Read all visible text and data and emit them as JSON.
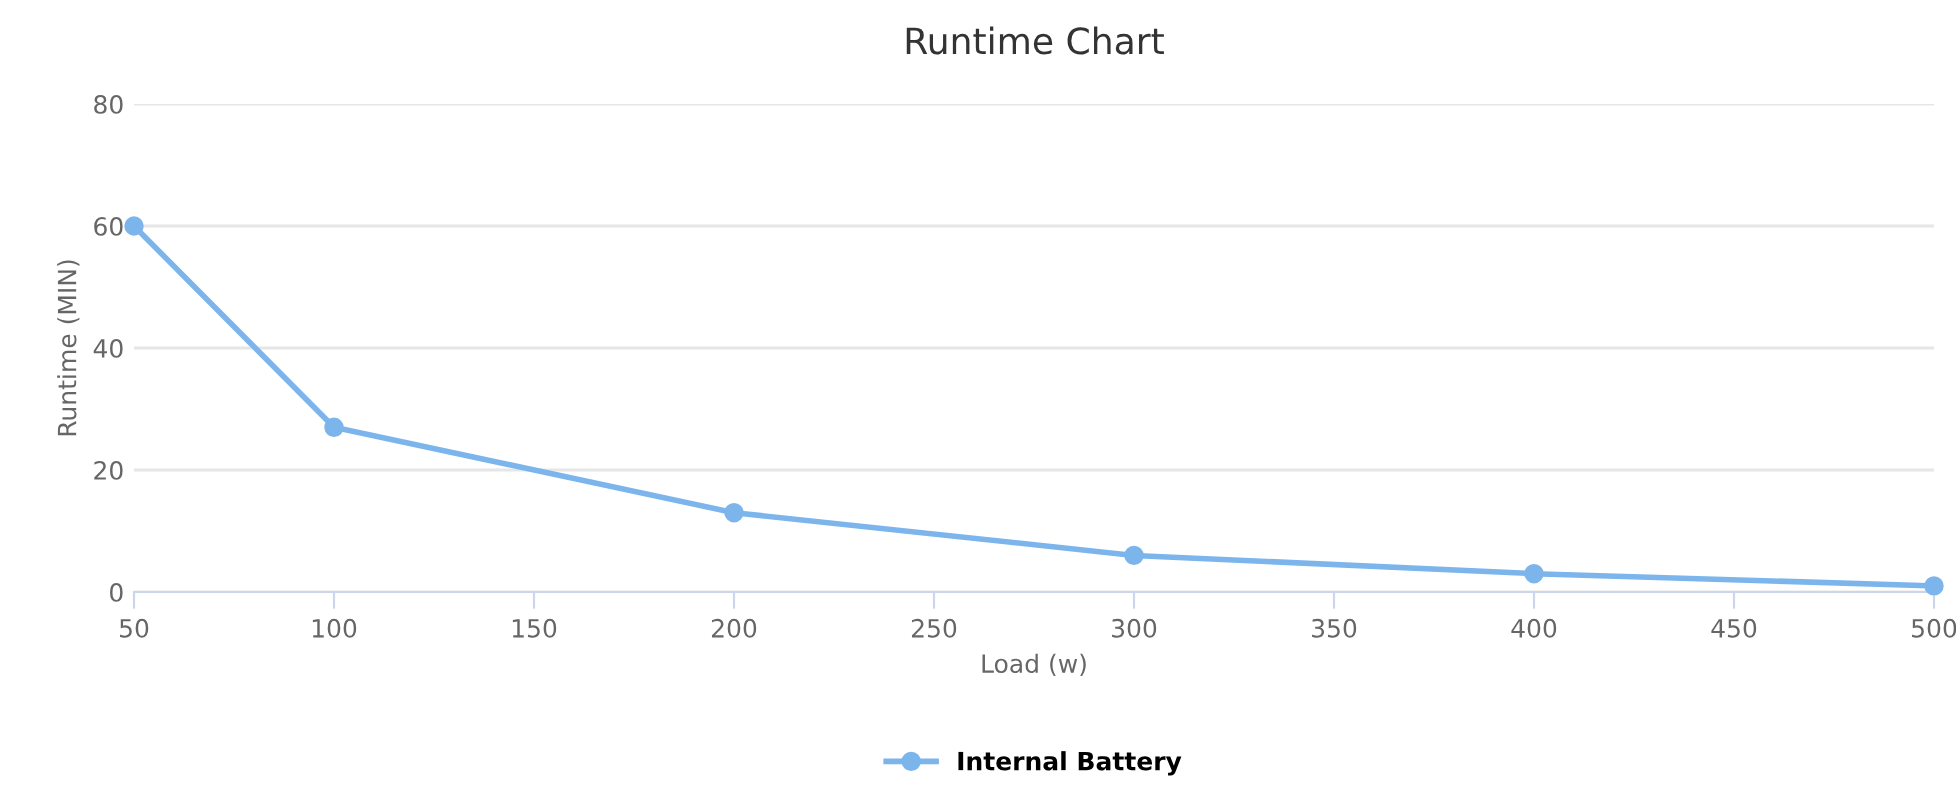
{
  "chart_data": {
    "type": "line",
    "title": "Runtime Chart",
    "xlabel": "Load (w)",
    "ylabel": "Runtime (MIN)",
    "x": [
      50,
      100,
      200,
      300,
      400,
      500
    ],
    "series": [
      {
        "name": "Internal Battery",
        "color": "#7cb5ec",
        "values": [
          60,
          27,
          13,
          6,
          3,
          1
        ]
      }
    ],
    "xlim": [
      50,
      500
    ],
    "xticks": [
      50,
      100,
      150,
      200,
      250,
      300,
      350,
      400,
      450,
      500
    ],
    "ylim": [
      0,
      80
    ],
    "yticks": [
      0,
      20,
      40,
      60,
      80
    ],
    "grid": "y",
    "legend": "bottom",
    "marker": "circle",
    "line_style": "solid"
  }
}
